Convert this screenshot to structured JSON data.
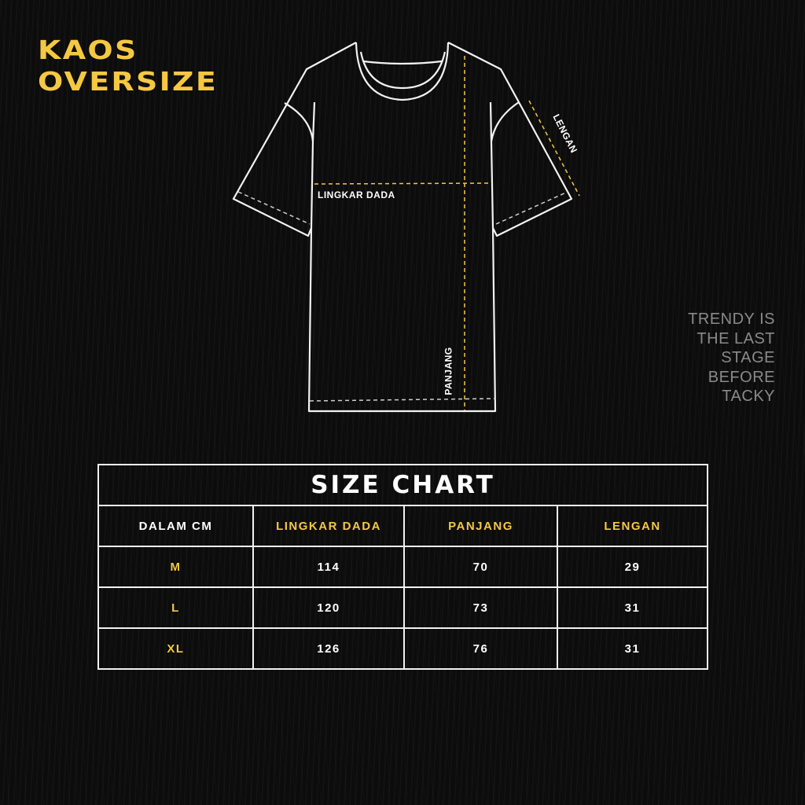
{
  "title": {
    "line1": "KAOS",
    "line2": "OVERSIZE"
  },
  "quote": [
    "TRENDY IS",
    "THE LAST",
    "STAGE",
    "BEFORE",
    "TACKY"
  ],
  "diagram": {
    "chest_label": "LINGKAR DADA",
    "length_label": "PANJANG",
    "sleeve_label": "LENGAN"
  },
  "colors": {
    "accent": "#f5c842",
    "background": "#0c0c0c",
    "line": "#f2f2f2"
  },
  "table": {
    "title": "SIZE CHART",
    "headers": [
      "DALAM CM",
      "LINGKAR DADA",
      "PANJANG",
      "LENGAN"
    ],
    "rows": [
      [
        "M",
        "114",
        "70",
        "29"
      ],
      [
        "L",
        "120",
        "73",
        "31"
      ],
      [
        "XL",
        "126",
        "76",
        "31"
      ]
    ]
  }
}
